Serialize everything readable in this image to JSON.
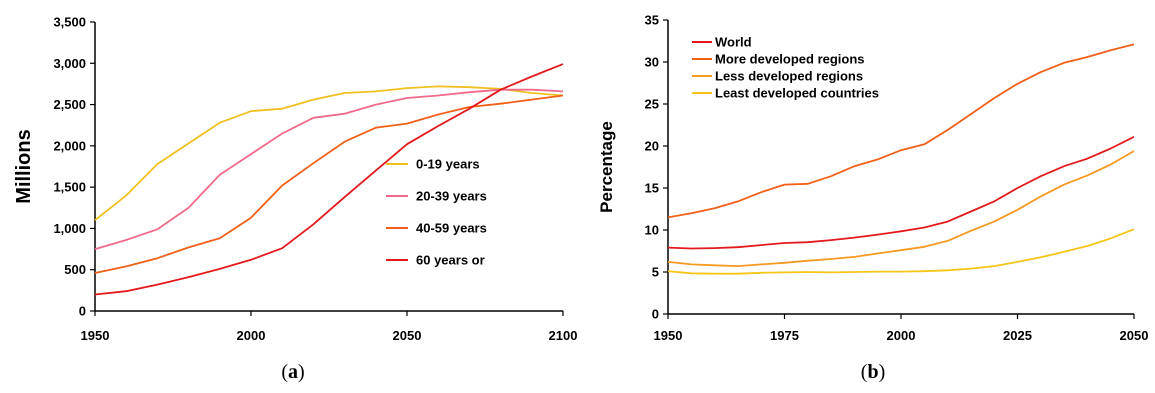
{
  "chart_data": [
    {
      "panel_label": "a",
      "type": "line",
      "ylabel": "Millions",
      "xlabel": "",
      "xlim": [
        1950,
        2100
      ],
      "ylim": [
        0,
        3500
      ],
      "x_ticks": [
        "1950",
        "2000",
        "2050",
        "2100"
      ],
      "y_ticks": [
        "0",
        "500",
        "1,000",
        "1,500",
        "2,000",
        "2,500",
        "3,000",
        "3,500"
      ],
      "grid": false,
      "legend_position": "right-center",
      "series": [
        {
          "name": "0-19 years",
          "color": "#f0c020",
          "points": [
            [
              1950,
              1100
            ],
            [
              1960,
              1400
            ],
            [
              1970,
              1780
            ],
            [
              1980,
              2030
            ],
            [
              1990,
              2280
            ],
            [
              2000,
              2420
            ],
            [
              2010,
              2450
            ],
            [
              2020,
              2560
            ],
            [
              2030,
              2640
            ],
            [
              2040,
              2660
            ],
            [
              2050,
              2700
            ],
            [
              2060,
              2720
            ],
            [
              2070,
              2710
            ],
            [
              2080,
              2690
            ],
            [
              2090,
              2640
            ],
            [
              2100,
              2610
            ]
          ]
        },
        {
          "name": "20-39 years",
          "color": "#f06a8a",
          "points": [
            [
              1950,
              750
            ],
            [
              1960,
              860
            ],
            [
              1970,
              990
            ],
            [
              1980,
              1250
            ],
            [
              1990,
              1650
            ],
            [
              2000,
              1900
            ],
            [
              2010,
              2150
            ],
            [
              2020,
              2340
            ],
            [
              2030,
              2390
            ],
            [
              2040,
              2500
            ],
            [
              2050,
              2580
            ],
            [
              2060,
              2610
            ],
            [
              2070,
              2650
            ],
            [
              2080,
              2680
            ],
            [
              2090,
              2680
            ],
            [
              2100,
              2660
            ]
          ]
        },
        {
          "name": "40-59 years",
          "color": "#f06018",
          "points": [
            [
              1950,
              460
            ],
            [
              1960,
              540
            ],
            [
              1970,
              640
            ],
            [
              1980,
              770
            ],
            [
              1990,
              880
            ],
            [
              2000,
              1130
            ],
            [
              2010,
              1520
            ],
            [
              2020,
              1790
            ],
            [
              2030,
              2050
            ],
            [
              2040,
              2220
            ],
            [
              2050,
              2270
            ],
            [
              2060,
              2380
            ],
            [
              2070,
              2470
            ],
            [
              2080,
              2510
            ],
            [
              2090,
              2560
            ],
            [
              2100,
              2610
            ]
          ]
        },
        {
          "name": "60 years or",
          "color": "#e31a1c",
          "points": [
            [
              1950,
              200
            ],
            [
              1960,
              240
            ],
            [
              1970,
              320
            ],
            [
              1980,
              410
            ],
            [
              1990,
              510
            ],
            [
              2000,
              620
            ],
            [
              2010,
              760
            ],
            [
              2020,
              1050
            ],
            [
              2030,
              1380
            ],
            [
              2040,
              1700
            ],
            [
              2050,
              2020
            ],
            [
              2060,
              2240
            ],
            [
              2070,
              2450
            ],
            [
              2080,
              2680
            ],
            [
              2090,
              2840
            ],
            [
              2100,
              2990
            ]
          ]
        }
      ]
    },
    {
      "panel_label": "b",
      "type": "line",
      "ylabel": "Percentage",
      "xlabel": "",
      "xlim": [
        1950,
        2050
      ],
      "ylim": [
        0,
        35
      ],
      "x_ticks": [
        "1950",
        "1975",
        "2000",
        "2025",
        "2050"
      ],
      "y_ticks": [
        "0",
        "5",
        "10",
        "15",
        "20",
        "25",
        "30",
        "35"
      ],
      "grid": false,
      "legend_position": "top-left",
      "series": [
        {
          "name": "World",
          "color": "#e31a1c",
          "points": [
            [
              1950,
              7.9
            ],
            [
              1955,
              7.8
            ],
            [
              1960,
              7.85
            ],
            [
              1965,
              7.95
            ],
            [
              1970,
              8.2
            ],
            [
              1975,
              8.45
            ],
            [
              1980,
              8.55
            ],
            [
              1985,
              8.8
            ],
            [
              1990,
              9.1
            ],
            [
              1995,
              9.45
            ],
            [
              2000,
              9.85
            ],
            [
              2005,
              10.3
            ],
            [
              2010,
              11.0
            ],
            [
              2015,
              12.2
            ],
            [
              2020,
              13.4
            ],
            [
              2025,
              15.0
            ],
            [
              2030,
              16.4
            ],
            [
              2035,
              17.6
            ],
            [
              2040,
              18.5
            ],
            [
              2045,
              19.7
            ],
            [
              2050,
              21.1
            ]
          ]
        },
        {
          "name": "More developed regions",
          "color": "#f06018",
          "points": [
            [
              1950,
              11.5
            ],
            [
              1955,
              12.0
            ],
            [
              1960,
              12.6
            ],
            [
              1965,
              13.4
            ],
            [
              1970,
              14.5
            ],
            [
              1975,
              15.4
            ],
            [
              1980,
              15.5
            ],
            [
              1985,
              16.4
            ],
            [
              1990,
              17.6
            ],
            [
              1995,
              18.4
            ],
            [
              2000,
              19.5
            ],
            [
              2005,
              20.2
            ],
            [
              2010,
              21.9
            ],
            [
              2015,
              23.8
            ],
            [
              2020,
              25.7
            ],
            [
              2025,
              27.4
            ],
            [
              2030,
              28.8
            ],
            [
              2035,
              29.9
            ],
            [
              2040,
              30.6
            ],
            [
              2045,
              31.4
            ],
            [
              2050,
              32.1
            ]
          ]
        },
        {
          "name": "Less developed regions",
          "color": "#f59a20",
          "points": [
            [
              1950,
              6.2
            ],
            [
              1955,
              5.9
            ],
            [
              1960,
              5.8
            ],
            [
              1965,
              5.7
            ],
            [
              1970,
              5.9
            ],
            [
              1975,
              6.1
            ],
            [
              1980,
              6.35
            ],
            [
              1985,
              6.55
            ],
            [
              1990,
              6.8
            ],
            [
              1995,
              7.2
            ],
            [
              2000,
              7.6
            ],
            [
              2005,
              8.0
            ],
            [
              2010,
              8.7
            ],
            [
              2015,
              9.9
            ],
            [
              2020,
              11.0
            ],
            [
              2025,
              12.4
            ],
            [
              2030,
              14.0
            ],
            [
              2035,
              15.4
            ],
            [
              2040,
              16.5
            ],
            [
              2045,
              17.8
            ],
            [
              2050,
              19.4
            ]
          ]
        },
        {
          "name": "Least developed countries",
          "color": "#f5c518",
          "points": [
            [
              1950,
              5.1
            ],
            [
              1955,
              4.85
            ],
            [
              1960,
              4.8
            ],
            [
              1965,
              4.8
            ],
            [
              1970,
              4.9
            ],
            [
              1975,
              4.95
            ],
            [
              1980,
              5.0
            ],
            [
              1985,
              4.95
            ],
            [
              1990,
              5.0
            ],
            [
              1995,
              5.05
            ],
            [
              2000,
              5.05
            ],
            [
              2005,
              5.1
            ],
            [
              2010,
              5.2
            ],
            [
              2015,
              5.4
            ],
            [
              2020,
              5.7
            ],
            [
              2025,
              6.2
            ],
            [
              2030,
              6.75
            ],
            [
              2035,
              7.4
            ],
            [
              2040,
              8.1
            ],
            [
              2045,
              9.0
            ],
            [
              2050,
              10.1
            ]
          ]
        }
      ]
    }
  ],
  "captions": {
    "a": "a",
    "b": "b"
  }
}
